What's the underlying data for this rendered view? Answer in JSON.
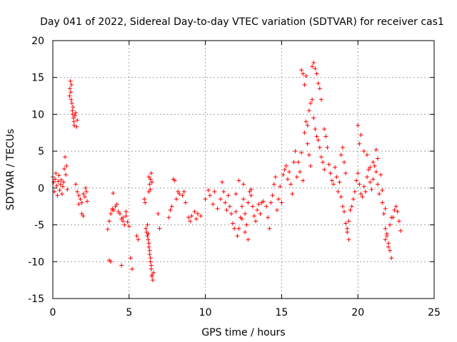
{
  "chart_data": {
    "type": "scatter",
    "title": "Day 041 of 2022, Sidereal Day-to-day VTEC variation (SDTVAR) for receiver cas1",
    "xlabel": "GPS time / hours",
    "ylabel": "SDTVAR / TECUs",
    "xlim": [
      0,
      25
    ],
    "ylim": [
      -15,
      20
    ],
    "xticks": [
      0,
      5,
      10,
      15,
      20,
      25
    ],
    "yticks": [
      -15,
      -10,
      -5,
      0,
      5,
      10,
      15,
      20
    ],
    "grid": true,
    "marker": "+",
    "color": "#ff0000",
    "series": [
      {
        "name": "SDTVAR",
        "x": [
          0.0,
          0.05,
          0.1,
          0.15,
          0.2,
          0.25,
          0.3,
          0.35,
          0.4,
          0.45,
          0.5,
          0.55,
          0.6,
          0.65,
          0.7,
          0.75,
          0.8,
          0.85,
          0.9,
          0.95,
          1.1,
          1.12,
          1.15,
          1.18,
          1.2,
          1.22,
          1.25,
          1.28,
          1.3,
          1.32,
          1.35,
          1.38,
          1.4,
          1.45,
          1.5,
          1.55,
          1.6,
          1.5,
          1.6,
          1.7,
          1.8,
          1.9,
          2.0,
          2.1,
          2.15,
          2.2,
          2.25,
          1.9,
          2.0,
          1.7,
          3.6,
          3.7,
          3.8,
          3.9,
          3.95,
          4.0,
          4.1,
          4.2,
          4.3,
          4.4,
          4.5,
          4.6,
          4.7,
          4.8,
          4.9,
          5.0,
          4.5,
          4.8,
          5.1,
          5.2,
          4.6,
          3.7,
          3.8,
          3.9,
          5.5,
          5.6,
          6.0,
          6.05,
          6.1,
          6.15,
          6.2,
          6.25,
          6.3,
          6.35,
          6.4,
          6.45,
          6.5,
          6.55,
          6.6,
          6.2,
          6.25,
          6.3,
          6.35,
          6.4,
          6.45,
          6.5,
          6.3,
          6.35,
          6.4,
          6.45,
          6.3,
          6.4,
          6.5,
          6.9,
          7.0,
          7.6,
          7.7,
          7.8,
          7.9,
          8.0,
          8.1,
          8.2,
          8.3,
          8.5,
          8.6,
          8.7,
          8.9,
          9.0,
          9.1,
          9.3,
          9.4,
          9.5,
          9.7,
          10.0,
          10.2,
          10.3,
          10.5,
          10.6,
          10.8,
          11.0,
          11.1,
          11.2,
          11.3,
          11.4,
          11.5,
          11.6,
          11.7,
          11.8,
          11.9,
          12.0,
          12.1,
          12.2,
          12.3,
          12.4,
          12.5,
          12.6,
          12.7,
          12.8,
          12.9,
          13.0,
          13.1,
          13.2,
          13.3,
          13.4,
          13.5,
          13.6,
          13.7,
          13.8,
          12.0,
          12.2,
          12.4,
          12.6,
          12.8,
          13.0,
          12.5,
          14.0,
          14.1,
          14.2,
          14.3,
          14.4,
          14.5,
          14.6,
          14.7,
          14.8,
          14.9,
          15.0,
          15.1,
          15.2,
          15.3,
          15.4,
          15.5,
          15.6,
          15.7,
          15.8,
          15.9,
          16.0,
          16.1,
          16.2,
          16.3,
          16.4,
          16.5,
          16.6,
          16.7,
          16.8,
          16.9,
          17.0,
          17.1,
          17.2,
          17.3,
          17.4,
          17.5,
          17.6,
          17.7,
          17.8,
          16.3,
          16.4,
          16.5,
          16.6,
          17.0,
          17.1,
          17.2,
          17.3,
          17.4,
          17.5,
          17.6,
          16.7,
          16.8,
          16.9,
          17.8,
          17.9,
          18.0,
          18.1,
          18.2,
          18.3,
          18.4,
          18.5,
          18.6,
          18.7,
          18.8,
          18.9,
          19.0,
          19.1,
          19.2,
          19.3,
          19.4,
          19.5,
          19.6,
          19.7,
          18.9,
          19.0,
          19.1,
          19.2,
          19.3,
          19.4,
          19.8,
          19.9,
          20.0,
          20.1,
          20.2,
          20.3,
          20.4,
          20.5,
          20.6,
          20.7,
          20.8,
          20.9,
          21.0,
          21.1,
          21.2,
          21.3,
          21.4,
          21.5,
          21.6,
          20.0,
          20.1,
          20.2,
          20.4,
          20.6,
          20.8,
          21.0,
          21.2,
          21.3,
          21.6,
          21.7,
          21.8,
          21.9,
          22.0,
          22.1,
          22.2,
          22.3,
          22.4,
          22.5,
          22.6,
          22.7,
          22.8,
          21.8,
          21.9,
          22.0,
          22.1,
          22.2,
          21.7,
          21.8
        ],
        "y": [
          1.5,
          0.8,
          -0.5,
          1.2,
          2.0,
          0.3,
          -1.0,
          0.9,
          1.7,
          -0.3,
          0.5,
          1.1,
          -0.8,
          0.2,
          0.8,
          2.6,
          4.2,
          1.8,
          3.0,
          -0.2,
          12.5,
          13.5,
          14.5,
          13.0,
          12.0,
          14.0,
          11.5,
          10.5,
          10.0,
          11.0,
          9.5,
          9.0,
          8.5,
          9.8,
          10.2,
          8.3,
          9.2,
          0.5,
          -0.5,
          -1.0,
          -1.5,
          -2.0,
          -0.8,
          -1.2,
          0.0,
          -0.5,
          -1.8,
          -3.5,
          -3.8,
          -2.2,
          -5.6,
          -4.5,
          -3.5,
          -2.8,
          -0.7,
          -3.0,
          -2.5,
          -2.2,
          -3.2,
          -3.5,
          -4.2,
          -4.5,
          -5.0,
          -3.8,
          -4.6,
          -5.2,
          -10.5,
          -3.2,
          -9.5,
          -11.0,
          -4.0,
          -9.8,
          -10.0,
          -3.0,
          -6.5,
          -7.0,
          -1.5,
          -2.0,
          -5.5,
          -6.0,
          -6.5,
          -7.0,
          -8.0,
          -9.0,
          -10.0,
          -11.0,
          -12.0,
          -12.5,
          -11.5,
          -5.0,
          -6.2,
          -7.5,
          -8.5,
          -9.5,
          -10.5,
          -11.8,
          -0.5,
          0.5,
          1.2,
          2.0,
          1.5,
          -0.2,
          0.8,
          -3.5,
          -5.5,
          -4.0,
          -3.0,
          -2.5,
          1.2,
          1.0,
          -1.5,
          -0.5,
          -0.8,
          -1.0,
          -0.5,
          -2.0,
          -4.0,
          -4.5,
          -3.8,
          -3.2,
          -4.2,
          -3.5,
          -3.8,
          -1.5,
          -0.3,
          -1.0,
          -2.2,
          -0.5,
          -2.8,
          -1.5,
          0.8,
          -0.5,
          -2.0,
          -3.0,
          -1.0,
          -2.5,
          -3.5,
          -4.8,
          -5.5,
          -3.2,
          -6.5,
          -5.5,
          -4.0,
          -2.5,
          -1.5,
          -3.5,
          -5.0,
          -2.0,
          -0.5,
          -1.0,
          -2.5,
          -3.8,
          -4.5,
          -3.0,
          -2.2,
          -3.5,
          -2.0,
          -1.8,
          -0.8,
          1.0,
          -4.2,
          -6.0,
          -7.0,
          -0.2,
          0.5,
          -2.5,
          -4.0,
          -5.5,
          -2.0,
          -1.0,
          0.5,
          1.5,
          -3.0,
          -1.5,
          0.2,
          -2.0,
          1.8,
          2.5,
          3.0,
          1.2,
          2.2,
          0.5,
          -0.8,
          3.5,
          5.0,
          1.5,
          3.5,
          2.2,
          4.8,
          1.0,
          7.5,
          9.0,
          8.5,
          10.5,
          11.5,
          12.0,
          9.5,
          8.0,
          7.0,
          6.5,
          5.5,
          4.2,
          3.5,
          2.5,
          16.0,
          15.5,
          14.0,
          15.2,
          16.5,
          17.0,
          16.2,
          15.5,
          14.2,
          13.5,
          12.0,
          6.0,
          4.5,
          3.0,
          8.0,
          7.0,
          5.5,
          3.2,
          2.0,
          1.0,
          0.5,
          2.8,
          1.5,
          -0.5,
          0.8,
          -1.2,
          -2.5,
          -3.2,
          -4.8,
          -5.5,
          -4.5,
          -3.0,
          -2.5,
          -1.5,
          4.5,
          5.5,
          3.5,
          2.0,
          -6.0,
          -7.0,
          -0.5,
          1.0,
          2.0,
          0.5,
          -0.8,
          -1.2,
          0.2,
          -0.5,
          1.5,
          2.5,
          0.8,
          -0.2,
          1.2,
          3.0,
          2.2,
          0.5,
          -0.8,
          1.8,
          -0.3,
          8.5,
          6.0,
          7.2,
          5.0,
          4.5,
          2.8,
          3.5,
          5.2,
          4.0,
          -2.0,
          -3.5,
          -5.5,
          -6.5,
          -7.5,
          -8.5,
          -9.5,
          -4.0,
          -3.0,
          -2.5,
          -3.2,
          -4.5,
          -5.8,
          -7.0,
          -6.2,
          -8.0,
          -5.0,
          -4.0,
          -3.5,
          -2.8
        ]
      }
    ]
  }
}
